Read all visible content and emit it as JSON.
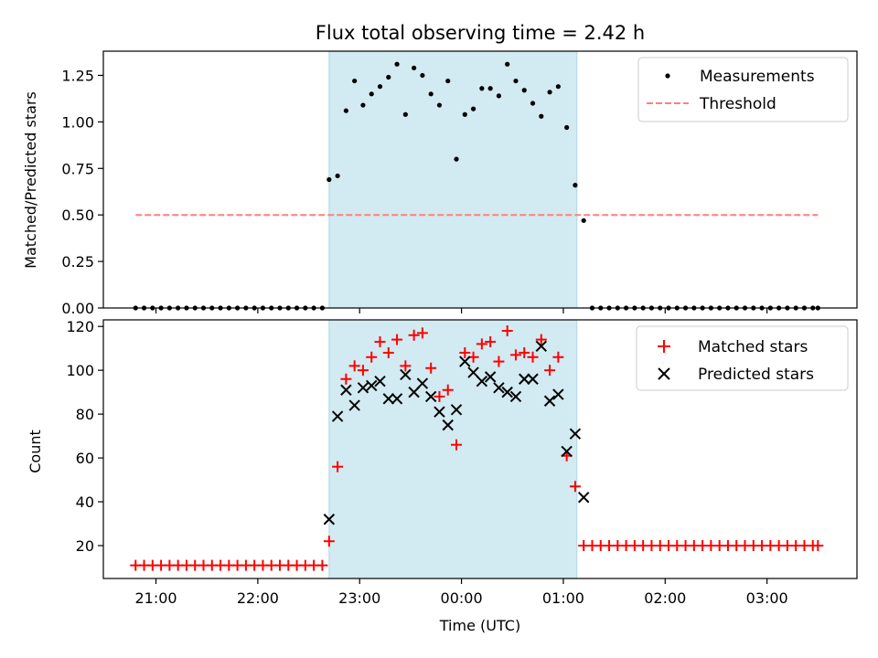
{
  "figure": {
    "title": "Flux total observing time = 2.42 h"
  },
  "chart_data": [
    {
      "type": "scatter",
      "panel": "top",
      "xlabel": "",
      "ylabel": "Matched/Predicted stars",
      "xlim": [
        "2024-01-01T20:29",
        "2024-01-02T03:53"
      ],
      "ylim": [
        0,
        1.38
      ],
      "yticks": [
        0.0,
        0.25,
        0.5,
        0.75,
        1.0,
        1.25
      ],
      "ytick_labels": [
        "0.00",
        "0.25",
        "0.50",
        "0.75",
        "1.00",
        "1.25"
      ],
      "grid": false,
      "legend": "top-right",
      "shaded_region": {
        "x_start": "2024-01-01T22:42",
        "x_end": "2024-01-02T01:08",
        "color": "#add8e6"
      },
      "colors": {
        "measurements": "#000000",
        "threshold": "#ff7f7f",
        "shade": "#add8e6"
      },
      "threshold": {
        "name": "Threshold",
        "y": 0.5,
        "x_start": "2024-01-01T20:48",
        "x_end": "2024-01-02T03:30"
      },
      "series": [
        {
          "name": "Measurements",
          "x": [
            "2024-01-01T20:48",
            "2024-01-01T20:53",
            "2024-01-01T20:58",
            "2024-01-01T21:03",
            "2024-01-01T21:08",
            "2024-01-01T21:13",
            "2024-01-01T21:18",
            "2024-01-01T21:23",
            "2024-01-01T21:28",
            "2024-01-01T21:33",
            "2024-01-01T21:38",
            "2024-01-01T21:43",
            "2024-01-01T21:48",
            "2024-01-01T21:53",
            "2024-01-01T21:58",
            "2024-01-01T22:03",
            "2024-01-01T22:08",
            "2024-01-01T22:13",
            "2024-01-01T22:18",
            "2024-01-01T22:23",
            "2024-01-01T22:28",
            "2024-01-01T22:33",
            "2024-01-01T22:38",
            "2024-01-01T22:42",
            "2024-01-01T22:47",
            "2024-01-01T22:52",
            "2024-01-01T22:57",
            "2024-01-01T23:02",
            "2024-01-01T23:07",
            "2024-01-01T23:12",
            "2024-01-01T23:17",
            "2024-01-01T23:22",
            "2024-01-01T23:27",
            "2024-01-01T23:32",
            "2024-01-01T23:37",
            "2024-01-01T23:42",
            "2024-01-01T23:47",
            "2024-01-01T23:52",
            "2024-01-01T23:57",
            "2024-01-02T00:02",
            "2024-01-02T00:07",
            "2024-01-02T00:12",
            "2024-01-02T00:17",
            "2024-01-02T00:22",
            "2024-01-02T00:27",
            "2024-01-02T00:32",
            "2024-01-02T00:37",
            "2024-01-02T00:42",
            "2024-01-02T00:47",
            "2024-01-02T00:52",
            "2024-01-02T00:57",
            "2024-01-02T01:02",
            "2024-01-02T01:07",
            "2024-01-02T01:12",
            "2024-01-02T01:17",
            "2024-01-02T01:22",
            "2024-01-02T01:27",
            "2024-01-02T01:32",
            "2024-01-02T01:37",
            "2024-01-02T01:42",
            "2024-01-02T01:47",
            "2024-01-02T01:52",
            "2024-01-02T01:57",
            "2024-01-02T02:02",
            "2024-01-02T02:07",
            "2024-01-02T02:12",
            "2024-01-02T02:17",
            "2024-01-02T02:22",
            "2024-01-02T02:27",
            "2024-01-02T02:32",
            "2024-01-02T02:37",
            "2024-01-02T02:42",
            "2024-01-02T02:47",
            "2024-01-02T02:52",
            "2024-01-02T02:57",
            "2024-01-02T03:02",
            "2024-01-02T03:07",
            "2024-01-02T03:12",
            "2024-01-02T03:17",
            "2024-01-02T03:22",
            "2024-01-02T03:27",
            "2024-01-02T03:30"
          ],
          "y": [
            0,
            0,
            0,
            0,
            0,
            0,
            0,
            0,
            0,
            0,
            0,
            0,
            0,
            0,
            0,
            0,
            0,
            0,
            0,
            0,
            0,
            0,
            0,
            0.69,
            0.71,
            1.06,
            1.22,
            1.09,
            1.15,
            1.19,
            1.24,
            1.31,
            1.04,
            1.29,
            1.25,
            1.15,
            1.09,
            1.22,
            0.8,
            1.04,
            1.07,
            1.18,
            1.18,
            1.14,
            1.31,
            1.22,
            1.17,
            1.1,
            1.03,
            1.16,
            1.19,
            0.97,
            0.66,
            0.47,
            0,
            0,
            0,
            0,
            0,
            0,
            0,
            0,
            0,
            0,
            0,
            0,
            0,
            0,
            0,
            0,
            0,
            0,
            0,
            0,
            0,
            0,
            0,
            0,
            0,
            0,
            0,
            0
          ]
        }
      ]
    },
    {
      "type": "scatter",
      "panel": "bottom",
      "xlabel": "Time (UTC)",
      "ylabel": "Count",
      "xlim": [
        "2024-01-01T20:29",
        "2024-01-02T03:53"
      ],
      "ylim": [
        5,
        123
      ],
      "yticks": [
        20,
        40,
        60,
        80,
        100,
        120
      ],
      "ytick_labels": [
        "20",
        "40",
        "60",
        "80",
        "100",
        "120"
      ],
      "xticks": [
        "2024-01-01T21:00",
        "2024-01-01T22:00",
        "2024-01-01T23:00",
        "2024-01-02T00:00",
        "2024-01-02T01:00",
        "2024-01-02T02:00",
        "2024-01-02T03:00"
      ],
      "xtick_labels": [
        "21:00",
        "22:00",
        "23:00",
        "00:00",
        "01:00",
        "02:00",
        "03:00"
      ],
      "grid": false,
      "legend": "top-right",
      "shaded_region": {
        "x_start": "2024-01-01T22:42",
        "x_end": "2024-01-02T01:08",
        "color": "#add8e6"
      },
      "colors": {
        "matched": "#ff0000",
        "predicted": "#000000"
      },
      "series": [
        {
          "name": "Matched stars",
          "marker": "plus",
          "x": [
            "2024-01-01T20:48",
            "2024-01-01T20:53",
            "2024-01-01T20:58",
            "2024-01-01T21:03",
            "2024-01-01T21:08",
            "2024-01-01T21:13",
            "2024-01-01T21:18",
            "2024-01-01T21:23",
            "2024-01-01T21:28",
            "2024-01-01T21:33",
            "2024-01-01T21:38",
            "2024-01-01T21:43",
            "2024-01-01T21:48",
            "2024-01-01T21:53",
            "2024-01-01T21:58",
            "2024-01-01T22:03",
            "2024-01-01T22:08",
            "2024-01-01T22:13",
            "2024-01-01T22:18",
            "2024-01-01T22:23",
            "2024-01-01T22:28",
            "2024-01-01T22:33",
            "2024-01-01T22:38",
            "2024-01-01T22:42",
            "2024-01-01T22:47",
            "2024-01-01T22:52",
            "2024-01-01T22:57",
            "2024-01-01T23:02",
            "2024-01-01T23:07",
            "2024-01-01T23:12",
            "2024-01-01T23:17",
            "2024-01-01T23:22",
            "2024-01-01T23:27",
            "2024-01-01T23:32",
            "2024-01-01T23:37",
            "2024-01-01T23:42",
            "2024-01-01T23:47",
            "2024-01-01T23:52",
            "2024-01-01T23:57",
            "2024-01-02T00:02",
            "2024-01-02T00:07",
            "2024-01-02T00:12",
            "2024-01-02T00:17",
            "2024-01-02T00:22",
            "2024-01-02T00:27",
            "2024-01-02T00:32",
            "2024-01-02T00:37",
            "2024-01-02T00:42",
            "2024-01-02T00:47",
            "2024-01-02T00:52",
            "2024-01-02T00:57",
            "2024-01-02T01:02",
            "2024-01-02T01:07",
            "2024-01-02T01:12",
            "2024-01-02T01:17",
            "2024-01-02T01:22",
            "2024-01-02T01:27",
            "2024-01-02T01:32",
            "2024-01-02T01:37",
            "2024-01-02T01:42",
            "2024-01-02T01:47",
            "2024-01-02T01:52",
            "2024-01-02T01:57",
            "2024-01-02T02:02",
            "2024-01-02T02:07",
            "2024-01-02T02:12",
            "2024-01-02T02:17",
            "2024-01-02T02:22",
            "2024-01-02T02:27",
            "2024-01-02T02:32",
            "2024-01-02T02:37",
            "2024-01-02T02:42",
            "2024-01-02T02:47",
            "2024-01-02T02:52",
            "2024-01-02T02:57",
            "2024-01-02T03:02",
            "2024-01-02T03:07",
            "2024-01-02T03:12",
            "2024-01-02T03:17",
            "2024-01-02T03:22",
            "2024-01-02T03:27",
            "2024-01-02T03:30"
          ],
          "y": [
            11,
            11,
            11,
            11,
            11,
            11,
            11,
            11,
            11,
            11,
            11,
            11,
            11,
            11,
            11,
            11,
            11,
            11,
            11,
            11,
            11,
            11,
            11,
            22,
            56,
            96,
            102,
            100,
            106,
            113,
            108,
            114,
            102,
            116,
            117,
            101,
            88,
            91,
            66,
            108,
            106,
            112,
            113,
            104,
            118,
            107,
            108,
            106,
            114,
            100,
            106,
            61,
            47,
            20,
            20,
            20,
            20,
            20,
            20,
            20,
            20,
            20,
            20,
            20,
            20,
            20,
            20,
            20,
            20,
            20,
            20,
            20,
            20,
            20,
            20,
            20,
            20,
            20,
            20,
            20,
            20,
            20
          ]
        },
        {
          "name": "Predicted stars",
          "marker": "x",
          "x": [
            "2024-01-01T22:42",
            "2024-01-01T22:47",
            "2024-01-01T22:52",
            "2024-01-01T22:57",
            "2024-01-01T23:02",
            "2024-01-01T23:07",
            "2024-01-01T23:12",
            "2024-01-01T23:17",
            "2024-01-01T23:22",
            "2024-01-01T23:27",
            "2024-01-01T23:32",
            "2024-01-01T23:37",
            "2024-01-01T23:42",
            "2024-01-01T23:47",
            "2024-01-01T23:52",
            "2024-01-01T23:57",
            "2024-01-02T00:02",
            "2024-01-02T00:07",
            "2024-01-02T00:12",
            "2024-01-02T00:17",
            "2024-01-02T00:22",
            "2024-01-02T00:27",
            "2024-01-02T00:32",
            "2024-01-02T00:37",
            "2024-01-02T00:42",
            "2024-01-02T00:47",
            "2024-01-02T00:52",
            "2024-01-02T00:57",
            "2024-01-02T01:02",
            "2024-01-02T01:07",
            "2024-01-02T01:12"
          ],
          "y": [
            32,
            79,
            91,
            84,
            92,
            93,
            95,
            87,
            87,
            98,
            90,
            94,
            88,
            81,
            75,
            82,
            104,
            99,
            95,
            97,
            92,
            90,
            88,
            96,
            96,
            111,
            86,
            89,
            63,
            71,
            42
          ]
        }
      ]
    }
  ]
}
